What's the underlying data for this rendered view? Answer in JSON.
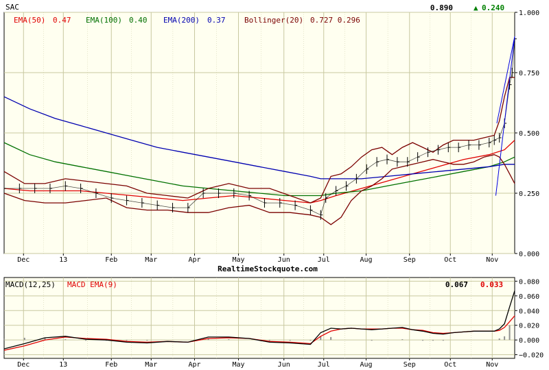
{
  "header": {
    "symbol": "SAC",
    "last_price": "0.890",
    "change": "0.240",
    "change_arrow": "▲"
  },
  "legend": {
    "ema50": {
      "label": "EMA(50)",
      "value": "0.47",
      "color": "#e00000"
    },
    "ema100": {
      "label": "EMA(100)",
      "value": "0.40",
      "color": "#007000"
    },
    "ema200": {
      "label": "EMA(200)",
      "value": "0.37",
      "color": "#0000b0"
    },
    "bollinger": {
      "label": "Bollinger(20)",
      "value": "0.727 0.296",
      "color": "#7a0000"
    }
  },
  "watermark": "RealtimeStockquote.com",
  "colors": {
    "background": "#fffff0",
    "grid": "#c8c8a0",
    "price": "#000000",
    "up": "#008000",
    "trend": "#0000e0",
    "macd_line": "#000000",
    "macd_signal": "#e00000",
    "histogram": "#909090"
  },
  "macd": {
    "label": "MACD(12,25)",
    "signal_label": "MACD EMA(9)",
    "value": "0.067",
    "signal_value": "0.033"
  },
  "chart_data": [
    {
      "type": "line",
      "title": "SAC",
      "x_ticks": [
        "Dec",
        "13",
        "Feb",
        "Mar",
        "Apr",
        "May",
        "Jun",
        "Jul",
        "Aug",
        "Sep",
        "Oct",
        "Nov"
      ],
      "x_range": [
        0,
        100
      ],
      "x_tick_positions": [
        3.8,
        11.6,
        21.0,
        28.8,
        37.3,
        45.9,
        54.8,
        62.6,
        70.9,
        79.4,
        87.4,
        95.6
      ],
      "ylim": [
        0.0,
        1.0
      ],
      "y_ticks": [
        "0.000",
        "0.250",
        "0.500",
        "0.750",
        "1.000"
      ],
      "grid": true,
      "series": [
        {
          "name": "Price",
          "x": [
            0,
            3,
            6,
            9,
            12,
            15,
            18,
            21,
            24,
            27,
            30,
            33,
            36,
            39,
            42,
            45,
            48,
            51,
            54,
            57,
            60,
            62,
            63,
            65,
            67,
            69,
            71,
            73,
            75,
            77,
            79,
            81,
            83,
            85,
            87,
            89,
            91,
            93,
            95,
            96,
            97,
            98,
            99,
            99.5,
            100
          ],
          "values": [
            0.27,
            0.27,
            0.27,
            0.27,
            0.28,
            0.27,
            0.25,
            0.23,
            0.22,
            0.21,
            0.2,
            0.19,
            0.19,
            0.25,
            0.25,
            0.25,
            0.24,
            0.21,
            0.21,
            0.2,
            0.18,
            0.16,
            0.23,
            0.26,
            0.28,
            0.31,
            0.35,
            0.38,
            0.39,
            0.38,
            0.38,
            0.4,
            0.42,
            0.43,
            0.44,
            0.44,
            0.45,
            0.45,
            0.46,
            0.47,
            0.48,
            0.54,
            0.7,
            0.75,
            0.89
          ]
        },
        {
          "name": "EMA(50)",
          "x": [
            0,
            5,
            10,
            15,
            20,
            25,
            30,
            35,
            40,
            45,
            50,
            55,
            60,
            62,
            65,
            70,
            75,
            80,
            85,
            90,
            95,
            98,
            100
          ],
          "values": [
            0.27,
            0.26,
            0.26,
            0.26,
            0.25,
            0.24,
            0.23,
            0.22,
            0.23,
            0.24,
            0.23,
            0.22,
            0.21,
            0.22,
            0.24,
            0.27,
            0.3,
            0.33,
            0.36,
            0.39,
            0.41,
            0.43,
            0.47
          ]
        },
        {
          "name": "EMA(100)",
          "x": [
            0,
            5,
            10,
            15,
            20,
            25,
            30,
            35,
            40,
            45,
            50,
            55,
            60,
            62,
            65,
            70,
            75,
            80,
            85,
            90,
            95,
            98,
            100
          ],
          "values": [
            0.46,
            0.41,
            0.38,
            0.36,
            0.34,
            0.32,
            0.3,
            0.28,
            0.27,
            0.26,
            0.25,
            0.24,
            0.24,
            0.24,
            0.25,
            0.26,
            0.28,
            0.3,
            0.32,
            0.34,
            0.36,
            0.38,
            0.4
          ]
        },
        {
          "name": "EMA(200)",
          "x": [
            0,
            5,
            10,
            15,
            20,
            25,
            30,
            35,
            40,
            45,
            50,
            55,
            60,
            62,
            65,
            70,
            75,
            80,
            85,
            90,
            95,
            98,
            100
          ],
          "values": [
            0.65,
            0.6,
            0.56,
            0.53,
            0.5,
            0.47,
            0.44,
            0.42,
            0.4,
            0.38,
            0.36,
            0.34,
            0.32,
            0.31,
            0.31,
            0.31,
            0.32,
            0.33,
            0.34,
            0.35,
            0.36,
            0.37,
            0.37
          ]
        },
        {
          "name": "Bollinger upper",
          "x": [
            0,
            4,
            8,
            12,
            16,
            20,
            24,
            28,
            32,
            36,
            40,
            44,
            48,
            52,
            56,
            60,
            62,
            64,
            66,
            68,
            70,
            72,
            74,
            76,
            78,
            80,
            82,
            84,
            86,
            88,
            90,
            92,
            94,
            96,
            97,
            98,
            99,
            100
          ],
          "values": [
            0.34,
            0.29,
            0.29,
            0.31,
            0.3,
            0.29,
            0.28,
            0.25,
            0.24,
            0.23,
            0.27,
            0.29,
            0.27,
            0.27,
            0.24,
            0.21,
            0.23,
            0.32,
            0.33,
            0.36,
            0.4,
            0.43,
            0.44,
            0.41,
            0.44,
            0.46,
            0.44,
            0.42,
            0.45,
            0.47,
            0.47,
            0.47,
            0.48,
            0.49,
            0.55,
            0.65,
            0.73,
            0.73
          ]
        },
        {
          "name": "Bollinger lower",
          "x": [
            0,
            4,
            8,
            12,
            16,
            20,
            24,
            28,
            32,
            36,
            40,
            44,
            48,
            52,
            56,
            60,
            62,
            64,
            66,
            68,
            70,
            72,
            74,
            76,
            78,
            80,
            82,
            84,
            86,
            88,
            90,
            92,
            94,
            96,
            97,
            98,
            99,
            100
          ],
          "values": [
            0.25,
            0.22,
            0.21,
            0.21,
            0.22,
            0.23,
            0.19,
            0.18,
            0.18,
            0.17,
            0.17,
            0.19,
            0.2,
            0.17,
            0.17,
            0.16,
            0.15,
            0.12,
            0.15,
            0.22,
            0.26,
            0.28,
            0.31,
            0.35,
            0.36,
            0.37,
            0.38,
            0.39,
            0.38,
            0.37,
            0.37,
            0.38,
            0.4,
            0.41,
            0.4,
            0.37,
            0.33,
            0.29
          ]
        }
      ]
    },
    {
      "type": "line",
      "title": "MACD(12,25)",
      "x_ticks": [
        "Dec",
        "13",
        "Feb",
        "Mar",
        "Apr",
        "May",
        "Jun",
        "Jul",
        "Aug",
        "Sep",
        "Oct",
        "Nov"
      ],
      "x_range": [
        0,
        100
      ],
      "x_tick_positions": [
        3.8,
        11.6,
        21.0,
        28.8,
        37.3,
        45.9,
        54.8,
        62.6,
        70.9,
        79.4,
        87.4,
        95.6
      ],
      "ylim": [
        -0.025,
        0.085
      ],
      "y_ticks": [
        "−0.020",
        "0.000",
        "0.020",
        "0.040",
        "0.060",
        "0.080"
      ],
      "grid": true,
      "series": [
        {
          "name": "MACD(12,25)",
          "x": [
            0,
            4,
            8,
            12,
            16,
            20,
            24,
            28,
            32,
            36,
            40,
            44,
            48,
            52,
            56,
            60,
            62,
            64,
            66,
            68,
            70,
            72,
            74,
            76,
            78,
            80,
            82,
            84,
            86,
            88,
            90,
            92,
            94,
            96,
            97,
            98,
            99,
            100
          ],
          "values": [
            -0.012,
            -0.005,
            0.003,
            0.005,
            0.001,
            0.0,
            -0.003,
            -0.004,
            -0.002,
            -0.003,
            0.004,
            0.004,
            0.002,
            -0.003,
            -0.004,
            -0.006,
            0.01,
            0.016,
            0.015,
            0.016,
            0.015,
            0.014,
            0.015,
            0.016,
            0.017,
            0.014,
            0.012,
            0.009,
            0.008,
            0.01,
            0.011,
            0.012,
            0.012,
            0.012,
            0.015,
            0.022,
            0.045,
            0.067
          ]
        },
        {
          "name": "MACD EMA(9)",
          "x": [
            0,
            4,
            8,
            12,
            16,
            20,
            24,
            28,
            32,
            36,
            40,
            44,
            48,
            52,
            56,
            60,
            62,
            64,
            66,
            68,
            70,
            72,
            74,
            76,
            78,
            80,
            82,
            84,
            86,
            88,
            90,
            92,
            94,
            96,
            97,
            98,
            99,
            100
          ],
          "values": [
            -0.014,
            -0.008,
            0.0,
            0.004,
            0.002,
            0.001,
            -0.002,
            -0.003,
            -0.002,
            -0.003,
            0.002,
            0.003,
            0.002,
            -0.002,
            -0.003,
            -0.005,
            0.005,
            0.012,
            0.015,
            0.016,
            0.015,
            0.015,
            0.015,
            0.016,
            0.016,
            0.014,
            0.013,
            0.01,
            0.009,
            0.01,
            0.011,
            0.012,
            0.012,
            0.012,
            0.013,
            0.017,
            0.025,
            0.033
          ]
        },
        {
          "name": "Histogram",
          "x": [
            0,
            4,
            8,
            12,
            16,
            20,
            24,
            28,
            32,
            36,
            40,
            44,
            48,
            52,
            56,
            60,
            62,
            64,
            66,
            68,
            70,
            72,
            74,
            76,
            78,
            80,
            82,
            84,
            86,
            88,
            90,
            92,
            94,
            96,
            97,
            98,
            99,
            100
          ],
          "values": [
            0.002,
            0.003,
            0.003,
            0.001,
            -0.001,
            -0.001,
            -0.001,
            -0.001,
            0.0,
            0.0,
            0.002,
            0.001,
            0.0,
            -0.001,
            -0.001,
            -0.001,
            0.005,
            0.004,
            0.0,
            0.0,
            0.0,
            -0.001,
            0.0,
            0.0,
            0.001,
            0.0,
            -0.001,
            -0.001,
            -0.001,
            0.0,
            0.0,
            0.0,
            0.0,
            0.0,
            0.002,
            0.005,
            0.02,
            0.034
          ]
        }
      ]
    }
  ]
}
